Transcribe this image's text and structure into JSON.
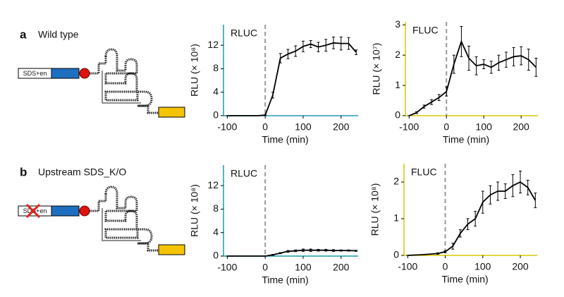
{
  "figure": {
    "rows": [
      {
        "letter": "a",
        "label": "Wild type",
        "construct": "SDS+en"
      },
      {
        "letter": "b",
        "label": "Upstream SDS_K/O",
        "construct": "SDS+en"
      }
    ]
  },
  "chart_data": [
    {
      "type": "line",
      "title": "RLUC",
      "ylabel": "RLU (× 10⁸)",
      "xlabel": "Time (min)",
      "axis_color": "#1b9ab3",
      "color": "#000000",
      "x": [
        -100,
        -60,
        -20,
        0,
        20,
        40,
        60,
        80,
        100,
        120,
        140,
        160,
        180,
        200,
        220,
        240
      ],
      "values": [
        0,
        0,
        0,
        0.1,
        3.5,
        9.8,
        10.5,
        11,
        11.8,
        12.2,
        11.7,
        12,
        12.4,
        12.3,
        12.3,
        10.8
      ],
      "errors": [
        0,
        0,
        0,
        0.1,
        0.5,
        0.8,
        0.8,
        0.9,
        0.9,
        0.6,
        0.8,
        1.0,
        1.0,
        1.1,
        1.0,
        0.4
      ],
      "vline": 0,
      "xlim": [
        -110,
        245
      ],
      "xticks": [
        -100,
        0,
        100,
        200
      ],
      "ylim": [
        0,
        15.5
      ],
      "yticks": [
        0,
        4,
        8,
        12
      ]
    },
    {
      "type": "line",
      "title": "FLUC",
      "ylabel": "RLU (× 10⁷)",
      "xlabel": "Time (min)",
      "axis_color": "#d9c800",
      "color": "#000000",
      "x": [
        -100,
        -80,
        -60,
        -40,
        -20,
        0,
        20,
        40,
        60,
        80,
        100,
        120,
        140,
        160,
        180,
        200,
        220,
        240
      ],
      "values": [
        0,
        0.1,
        0.3,
        0.45,
        0.6,
        0.8,
        1.7,
        2.45,
        1.9,
        1.65,
        1.7,
        1.6,
        1.75,
        1.85,
        1.95,
        1.98,
        1.85,
        1.6
      ],
      "errors": [
        0,
        0.03,
        0.05,
        0.08,
        0.1,
        0.15,
        0.3,
        0.5,
        0.4,
        0.3,
        0.15,
        0.2,
        0.25,
        0.25,
        0.3,
        0.3,
        0.35,
        0.3
      ],
      "vline": 0,
      "xlim": [
        -110,
        245
      ],
      "xticks": [
        -100,
        0,
        100,
        200
      ],
      "ylim": [
        0,
        3.1
      ],
      "yticks": [
        0,
        1,
        2,
        3
      ]
    },
    {
      "type": "line",
      "title": "RLUC",
      "ylabel": "RLU (× 10⁸)",
      "xlabel": "Time (min)",
      "axis_color": "#1b9ab3",
      "color": "#000000",
      "x": [
        -100,
        -60,
        -20,
        0,
        20,
        40,
        60,
        80,
        100,
        120,
        140,
        160,
        180,
        200,
        220,
        240
      ],
      "values": [
        0,
        0,
        0,
        0,
        0.2,
        0.5,
        0.8,
        0.9,
        1.0,
        1.0,
        1.0,
        1.0,
        0.95,
        0.95,
        0.95,
        0.9
      ],
      "errors": [
        0,
        0,
        0,
        0,
        0.1,
        0.1,
        0.15,
        0.15,
        0.2,
        0.2,
        0.15,
        0.15,
        0.15,
        0.1,
        0.1,
        0.1
      ],
      "vline": 0,
      "xlim": [
        -110,
        245
      ],
      "xticks": [
        -100,
        0,
        100,
        200
      ],
      "ylim": [
        0,
        15.5
      ],
      "yticks": [
        0,
        4,
        8,
        12
      ]
    },
    {
      "type": "line",
      "title": "FLUC",
      "ylabel": "RLU (× 10⁸)",
      "xlabel": "Time (min)",
      "axis_color": "#d9c800",
      "color": "#000000",
      "x": [
        -100,
        -60,
        -20,
        0,
        20,
        40,
        60,
        80,
        100,
        120,
        140,
        160,
        180,
        200,
        220,
        240
      ],
      "values": [
        0,
        0.02,
        0.05,
        0.1,
        0.25,
        0.6,
        0.85,
        1.0,
        1.45,
        1.65,
        1.75,
        1.75,
        1.9,
        2.0,
        1.85,
        1.5
      ],
      "errors": [
        0,
        0,
        0.02,
        0.03,
        0.08,
        0.1,
        0.15,
        0.2,
        0.3,
        0.25,
        0.25,
        0.2,
        0.3,
        0.3,
        0.2,
        0.2
      ],
      "vline": 0,
      "xlim": [
        -110,
        245
      ],
      "xticks": [
        -100,
        0,
        100,
        200
      ],
      "ylim": [
        0,
        2.5
      ],
      "yticks": [
        0,
        1,
        2
      ]
    }
  ]
}
